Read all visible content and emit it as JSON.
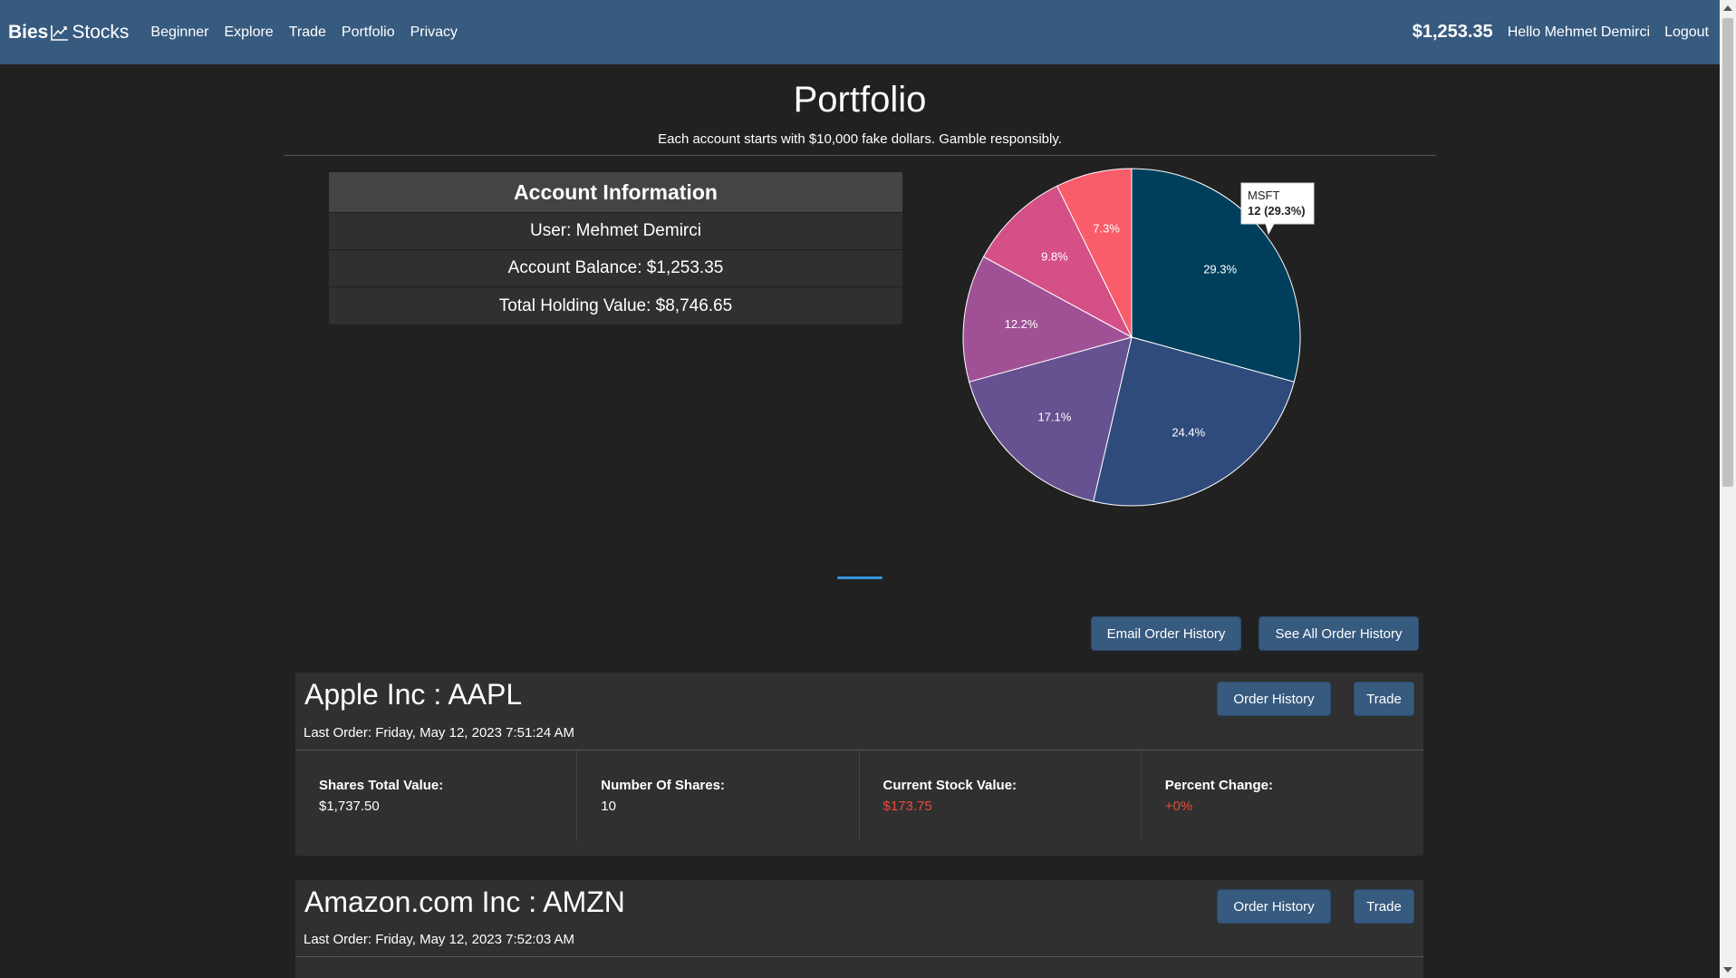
{
  "nav": {
    "brand_left": "Bies",
    "brand_right": "Stocks",
    "links": [
      "Beginner",
      "Explore",
      "Trade",
      "Portfolio",
      "Privacy"
    ],
    "balance": "$1,253.35",
    "hello": "Hello Mehmet Demirci",
    "logout": "Logout"
  },
  "page": {
    "title": "Portfolio",
    "subtitle": "Each account starts with $10,000 fake dollars. Gamble responsibly."
  },
  "account": {
    "heading": "Account Information",
    "user": "User: Mehmet Demirci",
    "balance": "Account Balance: $1,253.35",
    "holding": "Total Holding Value: $8,746.65"
  },
  "chart_data": {
    "type": "pie",
    "slices": [
      {
        "label": "MSFT",
        "percent_label": "29.3%",
        "percent": 29.3,
        "color": "#003f5c"
      },
      {
        "label": "",
        "percent_label": "24.4%",
        "percent": 24.4,
        "color": "#2f4b7c"
      },
      {
        "label": "",
        "percent_label": "17.1%",
        "percent": 17.1,
        "color": "#665191"
      },
      {
        "label": "",
        "percent_label": "12.2%",
        "percent": 12.2,
        "color": "#a05195"
      },
      {
        "label": "",
        "percent_label": "9.8%",
        "percent": 9.8,
        "color": "#d45087"
      },
      {
        "label": "",
        "percent_label": "7.3%",
        "percent": 7.3,
        "color": "#f95d6a"
      }
    ],
    "tooltip": {
      "label": "MSFT",
      "value": "12 (29.3%)"
    }
  },
  "actions": {
    "email_history": "Email Order History",
    "all_history": "See All Order History"
  },
  "holdings": [
    {
      "title": "Apple Inc : AAPL",
      "last_order": "Last Order: Friday, May 12, 2023 7:51:24 AM",
      "order_history": "Order History",
      "trade": "Trade",
      "metrics": {
        "total_label": "Shares Total Value:",
        "total_value": "$1,737.50",
        "shares_label": "Number Of Shares:",
        "shares_value": "10",
        "current_label": "Current Stock Value:",
        "current_value": "$173.75",
        "change_label": "Percent Change:",
        "change_value": "+0%"
      }
    },
    {
      "title": "Amazon.com Inc : AMZN",
      "last_order": "Last Order: Friday, May 12, 2023 7:52:03 AM",
      "order_history": "Order History",
      "trade": "Trade"
    }
  ],
  "colors": {
    "navbar": "#375a7f",
    "background": "#212121",
    "card": "#303030",
    "negative": "#e74c3c"
  }
}
